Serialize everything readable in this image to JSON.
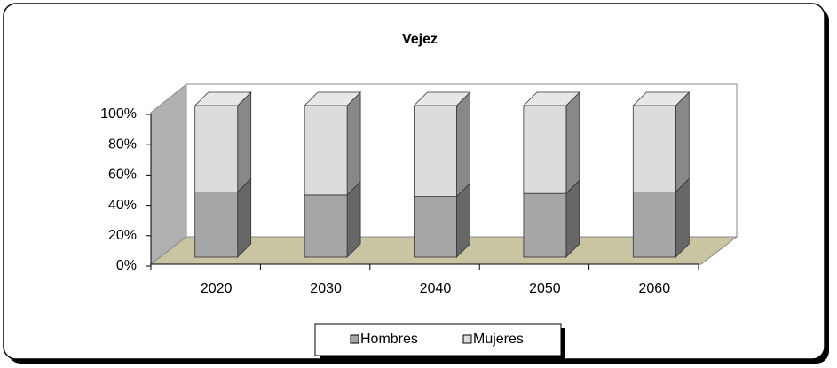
{
  "chart_data": {
    "type": "bar3d_stacked",
    "title": "Vejez",
    "categories": [
      "2020",
      "2030",
      "2040",
      "2050",
      "2060"
    ],
    "series": [
      {
        "name": "Hombres",
        "color": "#a6a6a6",
        "values": [
          43,
          41,
          40,
          42,
          43
        ]
      },
      {
        "name": "Mujeres",
        "color": "#dcdcdc",
        "values": [
          57,
          59,
          60,
          58,
          57
        ]
      }
    ],
    "ylim": [
      0,
      100
    ],
    "yticks": [
      {
        "value": 0,
        "label": "0%"
      },
      {
        "value": 20,
        "label": "20%"
      },
      {
        "value": 40,
        "label": "40%"
      },
      {
        "value": 60,
        "label": "60%"
      },
      {
        "value": 80,
        "label": "80%"
      },
      {
        "value": 100,
        "label": "100%"
      }
    ],
    "legend": "bottom"
  }
}
